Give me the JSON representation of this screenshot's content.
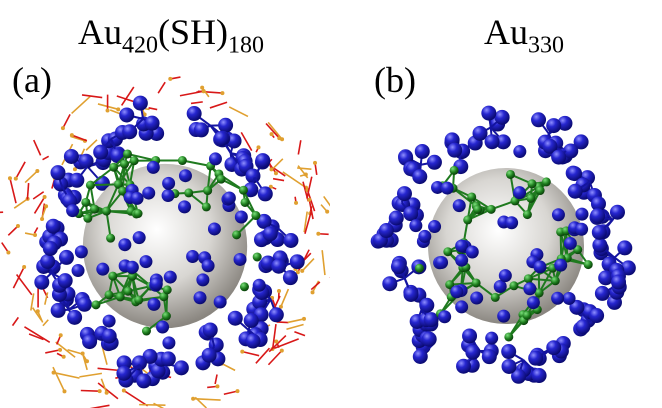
{
  "panel_a": {
    "title_base": "Au",
    "title_sub1": "420",
    "title_mid": "(SH)",
    "title_sub2": "180",
    "label": "(a)"
  },
  "panel_b": {
    "title_base": "Au",
    "title_sub": "330",
    "label": "(b)"
  },
  "colors": {
    "gold_atom": "#2323c8",
    "core_bond": "#1f7a1f",
    "sulfur_bond": "#d81818",
    "ligand_bond": "#e0a030",
    "sphere": "#b4b0a8"
  }
}
